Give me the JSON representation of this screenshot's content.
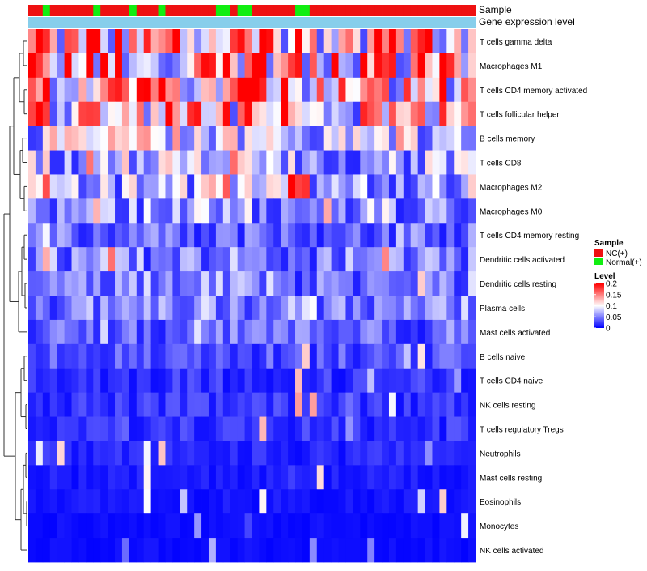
{
  "chart_data": {
    "type": "heatmap",
    "title": "",
    "annotation_tracks": [
      "Sample",
      "Gene expression level"
    ],
    "samples": [
      "NC(+)",
      "NC(+)",
      "Normal(+)",
      "NC(+)",
      "NC(+)",
      "NC(+)",
      "NC(+)",
      "NC(+)",
      "NC(+)",
      "Normal(+)",
      "NC(+)",
      "NC(+)",
      "NC(+)",
      "NC(+)",
      "Normal(+)",
      "NC(+)",
      "NC(+)",
      "NC(+)",
      "Normal(+)",
      "NC(+)",
      "NC(+)",
      "NC(+)",
      "NC(+)",
      "NC(+)",
      "NC(+)",
      "NC(+)",
      "Normal(+)",
      "Normal(+)",
      "NC(+)",
      "Normal(+)",
      "Normal(+)",
      "NC(+)",
      "NC(+)",
      "NC(+)",
      "NC(+)",
      "NC(+)",
      "NC(+)",
      "Normal(+)",
      "Normal(+)",
      "NC(+)",
      "NC(+)",
      "NC(+)",
      "NC(+)",
      "NC(+)",
      "NC(+)",
      "NC(+)",
      "NC(+)",
      "NC(+)",
      "NC(+)",
      "NC(+)",
      "NC(+)",
      "NC(+)",
      "NC(+)",
      "NC(+)",
      "NC(+)",
      "NC(+)",
      "NC(+)",
      "NC(+)",
      "NC(+)",
      "NC(+)",
      "NC(+)",
      "NC(+)"
    ],
    "rows": [
      "T cells gamma delta",
      "Macrophages M1",
      "T cells CD4 memory activated",
      "T cells follicular helper",
      "B cells memory",
      "T cells CD8",
      "Macrophages M2",
      "Macrophages M0",
      "T cells CD4 memory resting",
      "Dendritic cells activated",
      "Dendritic cells resting",
      "Plasma cells",
      "Mast cells activated",
      "B cells naive",
      "T cells CD4 naive",
      "NK cells resting",
      "T cells regulatory  Tregs",
      "Neutrophils",
      "Mast cells resting",
      "Eosinophils",
      "Monocytes",
      "NK cells activated"
    ],
    "row_base_levels": [
      0.13,
      0.15,
      0.12,
      0.11,
      0.08,
      0.07,
      0.07,
      0.06,
      0.04,
      0.05,
      0.05,
      0.05,
      0.04,
      0.03,
      0.02,
      0.02,
      0.02,
      0.015,
      0.01,
      0.008,
      0.005,
      0.005
    ],
    "values": [],
    "legend": {
      "sample_title": "Sample",
      "sample_entries": [
        {
          "label": "NC(+)",
          "color": "#ee1111"
        },
        {
          "label": "Normal(+)",
          "color": "#11ee11"
        }
      ],
      "level_title": "Level",
      "level_ticks": [
        "0.2",
        "0.15",
        "0.1",
        "0.05",
        "0"
      ],
      "level_tick_values": [
        0.2,
        0.15,
        0.1,
        0.05,
        0
      ],
      "level_range": [
        0,
        0.2
      ]
    },
    "colors": {
      "low": "#0000ff",
      "mid": "#ffffff",
      "high": "#ff0000",
      "nc": "#ee1111",
      "normal": "#11ee11",
      "expression_track": "#87ceeb"
    }
  }
}
